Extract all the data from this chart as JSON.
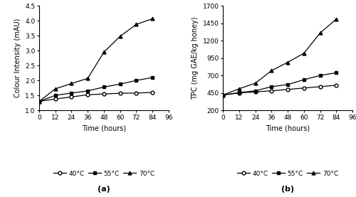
{
  "time": [
    0,
    12,
    24,
    36,
    48,
    60,
    72,
    84
  ],
  "colour_40": [
    1.3,
    1.38,
    1.45,
    1.52,
    1.55,
    1.57,
    1.58,
    1.6
  ],
  "colour_55": [
    1.3,
    1.5,
    1.58,
    1.65,
    1.78,
    1.88,
    2.0,
    2.1
  ],
  "colour_70": [
    1.3,
    1.72,
    1.9,
    2.07,
    2.95,
    3.48,
    3.88,
    4.07
  ],
  "tpc_40": [
    420,
    450,
    465,
    480,
    500,
    520,
    540,
    560
  ],
  "tpc_55": [
    420,
    455,
    480,
    540,
    570,
    640,
    700,
    740
  ],
  "tpc_70": [
    420,
    510,
    590,
    770,
    890,
    1020,
    1310,
    1510
  ],
  "colour_ylim": [
    1.0,
    4.5
  ],
  "colour_yticks": [
    1.0,
    1.5,
    2.0,
    2.5,
    3.0,
    3.5,
    4.0,
    4.5
  ],
  "colour_ylabel": "Colour Intensity (mAU)",
  "tpc_ylim": [
    200,
    1700
  ],
  "tpc_yticks": [
    200,
    450,
    700,
    950,
    1200,
    1450,
    1700
  ],
  "tpc_ylabel": "TPC (mg GAE/kg honey)",
  "xlim": [
    0,
    96
  ],
  "xticks": [
    0,
    12,
    24,
    36,
    48,
    60,
    72,
    84,
    96
  ],
  "xlabel": "Time (hours)",
  "legend_labels": [
    "40°C",
    "55°C",
    "70°C"
  ],
  "markers": [
    "o",
    "s",
    "^"
  ],
  "color": "#000000",
  "label_a": "(a)",
  "label_b": "(b)",
  "fig_width": 5.0,
  "fig_height": 2.77,
  "dpi": 100
}
